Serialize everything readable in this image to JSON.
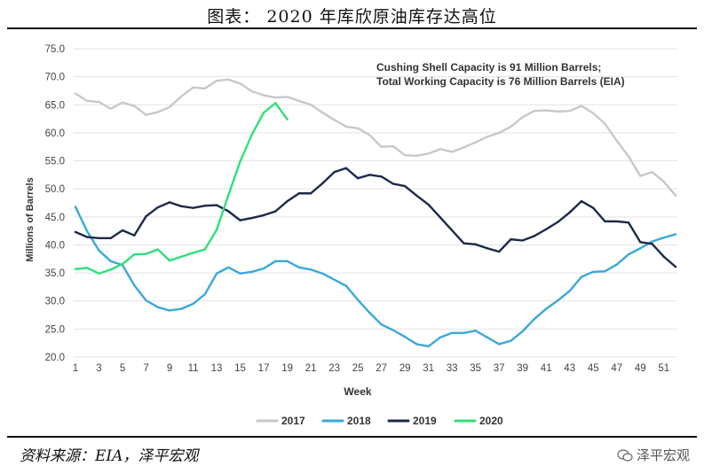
{
  "figure": {
    "title": "图表： 2020 年库欣原油库存达高位",
    "source": "资料来源：EIA，泽平宏观",
    "watermark": "泽平宏观",
    "watermark_icon": "wechat-icon"
  },
  "chart_data": {
    "type": "line",
    "xlabel": "Week",
    "ylabel": "Millions of Barrels",
    "ylim": [
      20,
      75
    ],
    "yticks": [
      20.0,
      25.0,
      30.0,
      35.0,
      40.0,
      45.0,
      50.0,
      55.0,
      60.0,
      65.0,
      70.0,
      75.0
    ],
    "xlim": [
      1,
      52
    ],
    "xticks": [
      1,
      3,
      5,
      7,
      9,
      11,
      13,
      15,
      17,
      19,
      21,
      23,
      25,
      27,
      29,
      31,
      33,
      35,
      37,
      39,
      41,
      43,
      45,
      47,
      49,
      51
    ],
    "grid": "horizontal",
    "legend_position": "bottom",
    "annotation": [
      "Cushing Shell Capacity is 91 Million Barrels;",
      "Total Working Capacity is 76 Million Barrels (EIA)"
    ],
    "series": [
      {
        "name": "2017",
        "color": "#c8c8c8",
        "x": [
          1,
          2,
          3,
          4,
          5,
          6,
          7,
          8,
          9,
          10,
          11,
          12,
          13,
          14,
          15,
          16,
          17,
          18,
          19,
          20,
          21,
          22,
          23,
          24,
          25,
          26,
          27,
          28,
          29,
          30,
          31,
          32,
          33,
          34,
          35,
          36,
          37,
          38,
          39,
          40,
          41,
          42,
          43,
          44,
          45,
          46,
          47,
          48,
          49,
          50,
          51,
          52
        ],
        "values": [
          67.0,
          65.7,
          65.5,
          64.3,
          65.4,
          64.8,
          63.2,
          63.7,
          64.6,
          66.5,
          68.1,
          67.9,
          69.3,
          69.5,
          68.8,
          67.4,
          66.7,
          66.3,
          66.4,
          65.7,
          65.0,
          63.6,
          62.3,
          61.1,
          60.8,
          59.6,
          57.5,
          57.6,
          56.0,
          55.9,
          56.3,
          57.1,
          56.6,
          57.4,
          58.3,
          59.3,
          60.0,
          61.1,
          62.8,
          63.9,
          64.0,
          63.8,
          63.9,
          64.8,
          63.5,
          61.6,
          58.6,
          55.8,
          52.3,
          53.0,
          51.3,
          48.8
        ]
      },
      {
        "name": "2018",
        "color": "#3aa8dc",
        "x": [
          1,
          2,
          3,
          4,
          5,
          6,
          7,
          8,
          9,
          10,
          11,
          12,
          13,
          14,
          15,
          16,
          17,
          18,
          19,
          20,
          21,
          22,
          23,
          24,
          25,
          26,
          27,
          28,
          29,
          30,
          31,
          32,
          33,
          34,
          35,
          36,
          37,
          38,
          39,
          40,
          41,
          42,
          43,
          44,
          45,
          46,
          47,
          48,
          49,
          50,
          51,
          52
        ],
        "values": [
          46.8,
          42.4,
          39.0,
          37.1,
          36.4,
          32.8,
          30.1,
          28.9,
          28.3,
          28.6,
          29.5,
          31.2,
          34.9,
          36.0,
          34.9,
          35.2,
          35.8,
          37.1,
          37.1,
          36.0,
          35.6,
          34.9,
          33.8,
          32.7,
          30.2,
          27.9,
          25.8,
          24.8,
          23.6,
          22.3,
          21.9,
          23.5,
          24.3,
          24.3,
          24.7,
          23.5,
          22.3,
          22.9,
          24.6,
          26.8,
          28.6,
          30.1,
          31.8,
          34.3,
          35.2,
          35.3,
          36.5,
          38.3,
          39.4,
          40.6,
          41.3,
          41.9
        ]
      },
      {
        "name": "2019",
        "color": "#1c2a48",
        "x": [
          1,
          2,
          3,
          4,
          5,
          6,
          7,
          8,
          9,
          10,
          11,
          12,
          13,
          14,
          15,
          16,
          17,
          18,
          19,
          20,
          21,
          22,
          23,
          24,
          25,
          26,
          27,
          28,
          29,
          30,
          31,
          32,
          33,
          34,
          35,
          36,
          37,
          38,
          39,
          40,
          41,
          42,
          43,
          44,
          45,
          46,
          47,
          48,
          49,
          50,
          51,
          52
        ],
        "values": [
          42.3,
          41.4,
          41.2,
          41.2,
          42.6,
          41.7,
          45.1,
          46.7,
          47.6,
          46.9,
          46.6,
          47.0,
          47.1,
          46.0,
          44.4,
          44.8,
          45.3,
          46.0,
          47.8,
          49.2,
          49.2,
          51.0,
          53.0,
          53.7,
          51.9,
          52.5,
          52.2,
          50.9,
          50.5,
          48.8,
          47.2,
          44.9,
          42.6,
          40.3,
          40.1,
          39.4,
          38.8,
          41.0,
          40.8,
          41.6,
          42.8,
          44.1,
          45.8,
          47.8,
          46.6,
          44.2,
          44.2,
          44.0,
          40.5,
          40.2,
          37.9,
          36.1
        ]
      },
      {
        "name": "2020",
        "color": "#2ee07a",
        "x": [
          1,
          2,
          3,
          4,
          5,
          6,
          7,
          8,
          9,
          10,
          11,
          12,
          13,
          14,
          15,
          16,
          17,
          18,
          19
        ],
        "values": [
          35.7,
          35.9,
          34.9,
          35.6,
          36.6,
          38.3,
          38.4,
          39.2,
          37.2,
          37.9,
          38.6,
          39.2,
          42.7,
          48.9,
          54.9,
          59.7,
          63.6,
          65.3,
          62.4
        ]
      }
    ]
  }
}
